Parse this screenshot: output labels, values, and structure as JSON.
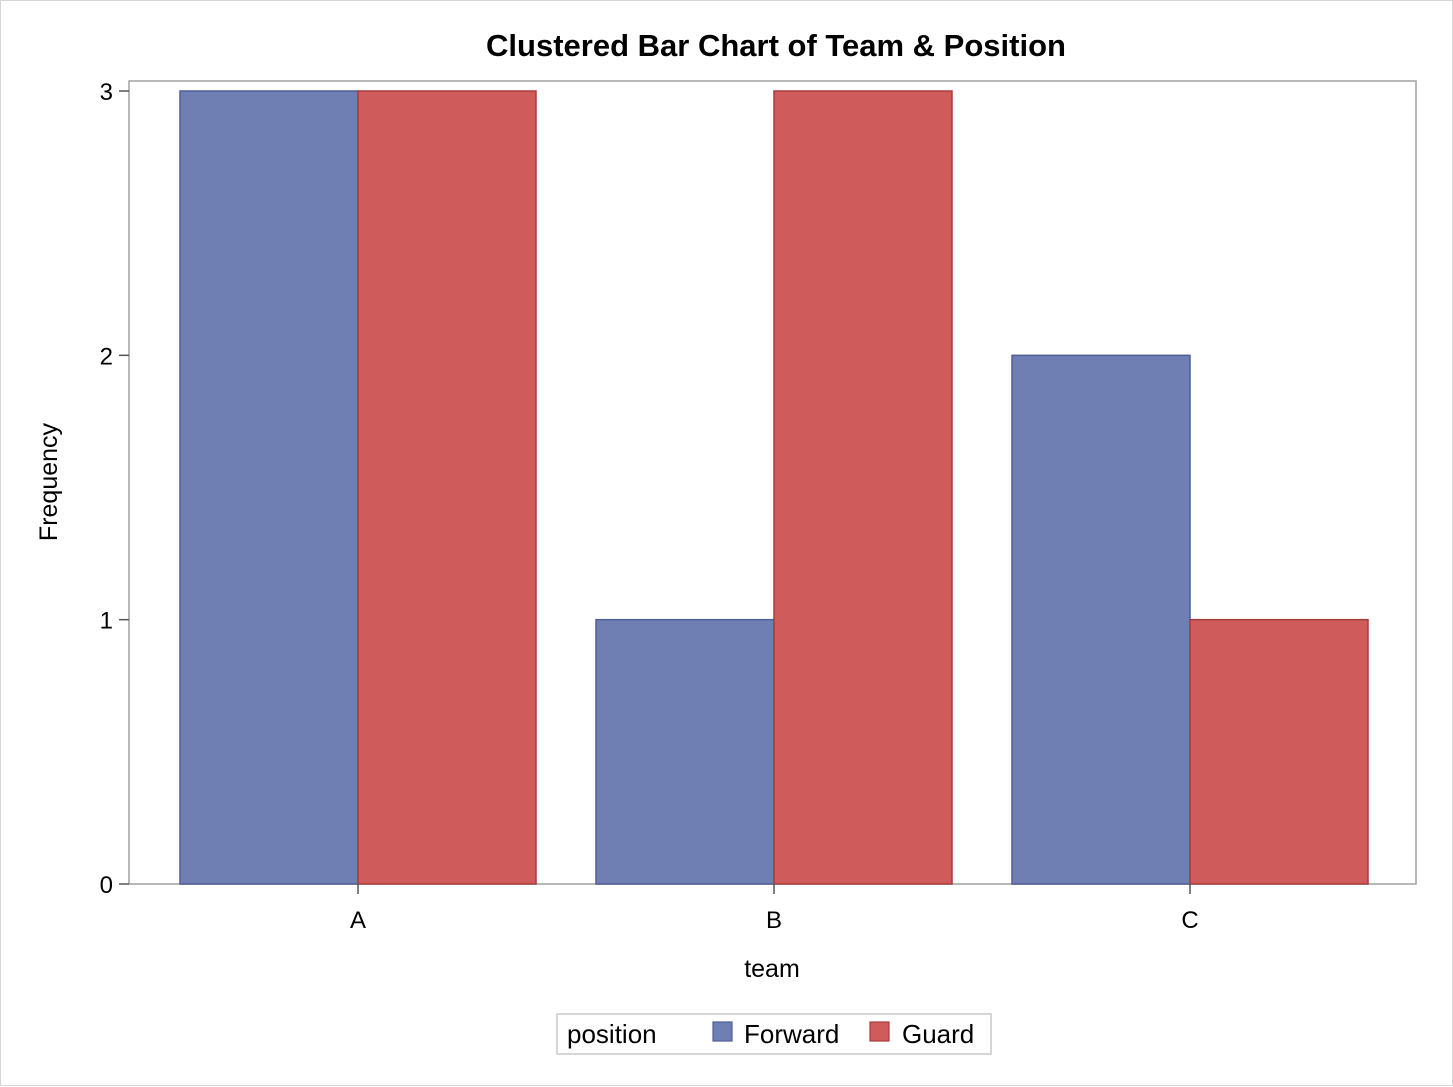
{
  "chart_data": {
    "type": "bar",
    "title": "Clustered Bar Chart of Team & Position",
    "xlabel": "team",
    "ylabel": "Frequency",
    "categories": [
      "A",
      "B",
      "C"
    ],
    "series": [
      {
        "name": "Forward",
        "values": [
          3,
          1,
          2
        ],
        "color": "#6f7eb3"
      },
      {
        "name": "Guard",
        "values": [
          3,
          3,
          1
        ],
        "color": "#d05b5b"
      }
    ],
    "ylim": [
      0,
      3
    ],
    "yticks": [
      0,
      1,
      2,
      3
    ],
    "grid": false,
    "legend": {
      "title": "position",
      "placement": "bottom-center"
    }
  }
}
